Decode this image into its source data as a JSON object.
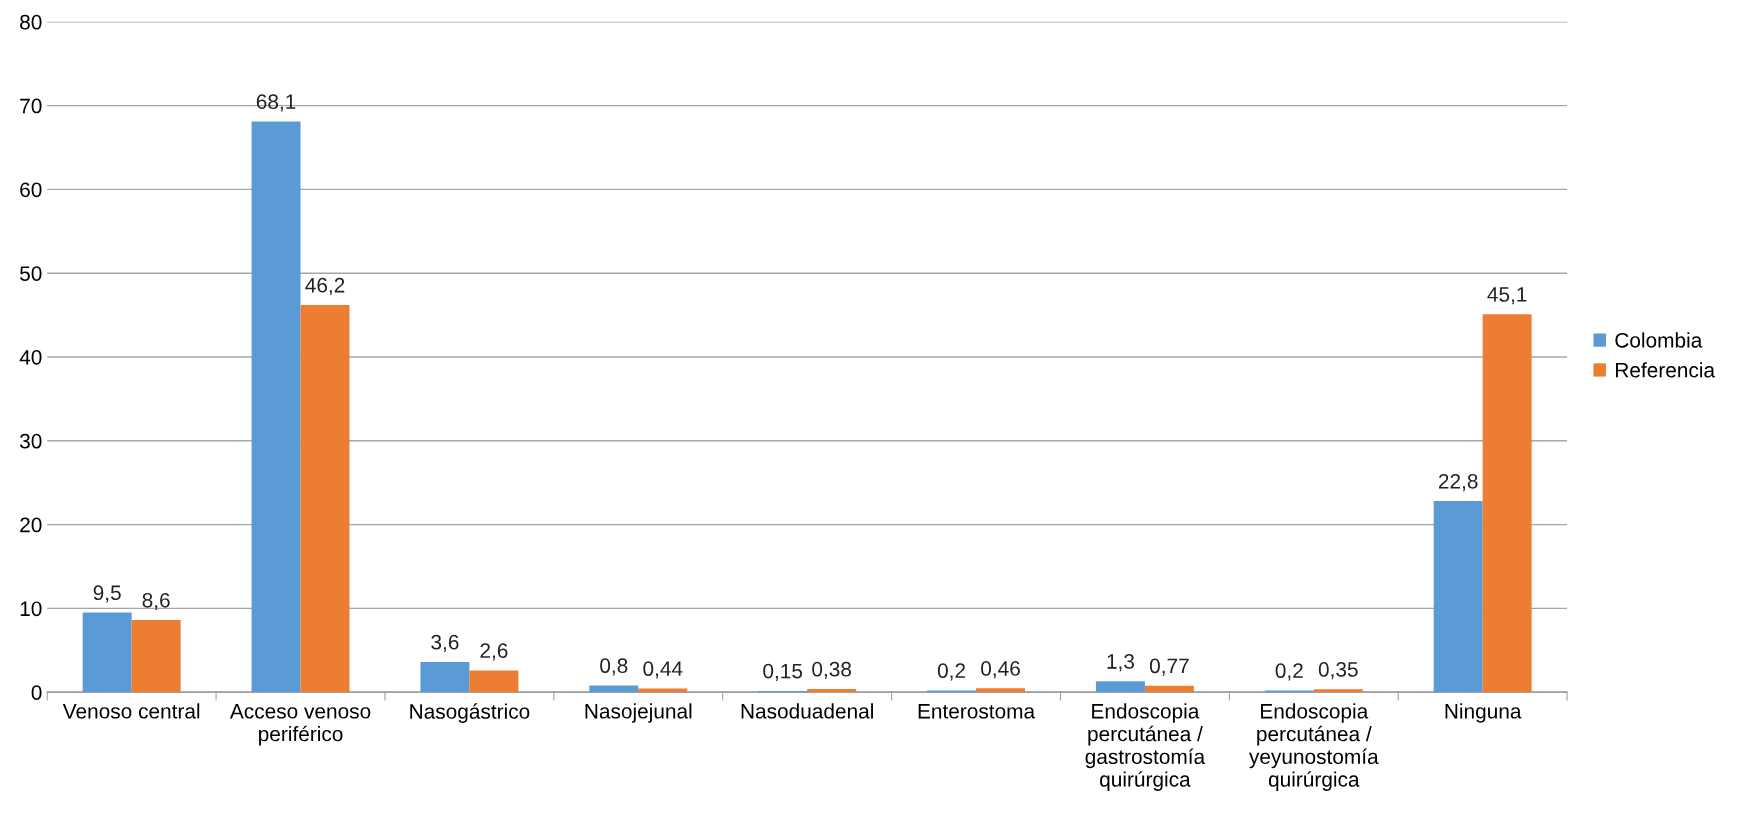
{
  "chart_data": {
    "type": "bar",
    "categories": [
      "Venoso central",
      "Acceso venoso\nperiférico",
      "Nasogástrico",
      "Nasojejunal",
      "Nasoduadenal",
      "Enterostoma",
      "Endoscopia\npercutánea /\ngastrostomía\nquirúrgica",
      "Endoscopia\npercutánea /\nyeyunostomía\nquirúrgica",
      "Ninguna"
    ],
    "series": [
      {
        "name": "Colombia",
        "color": "#5b9bd5",
        "values": [
          9.5,
          68.1,
          3.6,
          0.8,
          0.15,
          0.2,
          1.3,
          0.2,
          22.8
        ],
        "value_labels": [
          "9,5",
          "68,1",
          "3,6",
          "0,8",
          "0,15",
          "0,2",
          "1,3",
          "0,2",
          "22,8"
        ]
      },
      {
        "name": "Referencia",
        "color": "#ed7d31",
        "values": [
          8.6,
          46.2,
          2.6,
          0.44,
          0.38,
          0.46,
          0.77,
          0.35,
          45.1
        ],
        "value_labels": [
          "8,6",
          "46,2",
          "2,6",
          "0,44",
          "0,38",
          "0,46",
          "0,77",
          "0,35",
          "45,1"
        ]
      }
    ],
    "ylim": [
      0,
      80
    ],
    "yticks": [
      0,
      10,
      20,
      30,
      40,
      50,
      60,
      70,
      80
    ],
    "grid": "y",
    "legend": "right"
  }
}
